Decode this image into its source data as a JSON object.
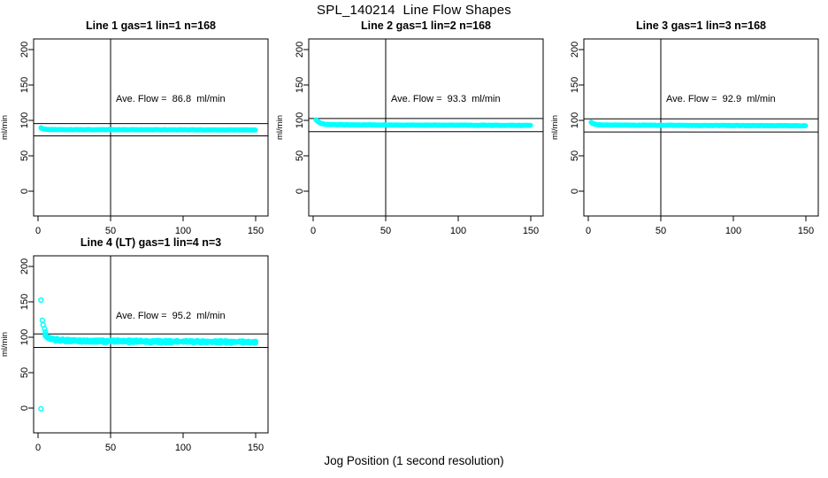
{
  "figure": {
    "title": "SPL_140214  Line Flow Shapes",
    "x_axis_label": "Jog Position (1 second resolution)",
    "background_color": "#ffffff",
    "point_color": "#00ffff",
    "axis_color": "#000000"
  },
  "chart_data": [
    {
      "type": "scatter",
      "title": "Line 1 gas=1 lin=1 n=168",
      "annotation": "Ave. Flow =  86.8  ml/min",
      "avg_flow_ml_min": 86.8,
      "n": 168,
      "ylabel": "ml/min",
      "xlim": [
        -3,
        158
      ],
      "ylim": [
        -35,
        215
      ],
      "x_ticks": [
        0,
        50,
        100,
        150
      ],
      "y_ticks": [
        0,
        50,
        100,
        150,
        200
      ],
      "vline_x": 50,
      "ref_lines_y": [
        95.5,
        78.1
      ],
      "band_profile": [
        [
          2,
          89.3
        ],
        [
          3,
          88.2
        ],
        [
          4,
          87.6
        ],
        [
          6,
          87.2
        ],
        [
          10,
          87.0
        ],
        [
          80,
          86.8
        ],
        [
          150,
          86.5
        ]
      ],
      "x_end": 150,
      "noise": 0.25,
      "wobble": 0,
      "runs": 1,
      "outliers": []
    },
    {
      "type": "scatter",
      "title": "Line 2 gas=1 lin=2 n=168",
      "annotation": "Ave. Flow =  93.3  ml/min",
      "avg_flow_ml_min": 93.3,
      "n": 168,
      "ylabel": "ml/min",
      "xlim": [
        -3,
        158
      ],
      "ylim": [
        -35,
        215
      ],
      "x_ticks": [
        0,
        50,
        100,
        150
      ],
      "y_ticks": [
        0,
        50,
        100,
        150,
        200
      ],
      "vline_x": 50,
      "ref_lines_y": [
        102.6,
        84.0
      ],
      "band_profile": [
        [
          2,
          100.8
        ],
        [
          3,
          99.0
        ],
        [
          4,
          97.2
        ],
        [
          5,
          96.0
        ],
        [
          7,
          94.8
        ],
        [
          10,
          94.2
        ],
        [
          20,
          93.8
        ],
        [
          60,
          93.4
        ],
        [
          150,
          92.9
        ]
      ],
      "x_end": 150,
      "noise": 0.3,
      "wobble": 0,
      "runs": 1,
      "outliers": []
    },
    {
      "type": "scatter",
      "title": "Line 3 gas=1 lin=3 n=168",
      "annotation": "Ave. Flow =  92.9  ml/min",
      "avg_flow_ml_min": 92.9,
      "n": 168,
      "ylabel": "ml/min",
      "xlim": [
        -3,
        158
      ],
      "ylim": [
        -35,
        215
      ],
      "x_ticks": [
        0,
        50,
        100,
        150
      ],
      "y_ticks": [
        0,
        50,
        100,
        150,
        200
      ],
      "vline_x": 50,
      "ref_lines_y": [
        102.2,
        83.6
      ],
      "band_profile": [
        [
          2,
          97.0
        ],
        [
          3,
          95.8
        ],
        [
          4,
          94.8
        ],
        [
          6,
          94.0
        ],
        [
          10,
          93.5
        ],
        [
          30,
          93.2
        ],
        [
          150,
          92.4
        ]
      ],
      "x_end": 150,
      "noise": 0.3,
      "wobble": 0,
      "runs": 1,
      "outliers": []
    },
    {
      "type": "scatter",
      "title": "Line 4 (LT) gas=1 lin=4 n=3",
      "annotation": "Ave. Flow =  95.2  ml/min",
      "avg_flow_ml_min": 95.2,
      "n": 3,
      "ylabel": "ml/min",
      "xlim": [
        -3,
        158
      ],
      "ylim": [
        -35,
        215
      ],
      "x_ticks": [
        0,
        50,
        100,
        150
      ],
      "y_ticks": [
        0,
        50,
        100,
        150,
        200
      ],
      "vline_x": 50,
      "ref_lines_y": [
        104.7,
        85.7
      ],
      "band_profile": [
        [
          5,
          103.0
        ],
        [
          6,
          100.5
        ],
        [
          8,
          98.5
        ],
        [
          12,
          96.5
        ],
        [
          20,
          95.3
        ],
        [
          40,
          94.6
        ],
        [
          80,
          94.0
        ],
        [
          150,
          93.2
        ]
      ],
      "x_end": 150,
      "noise": 1.1,
      "wobble": 1.0,
      "runs": 3,
      "outliers": [
        [
          2,
          152.5
        ],
        [
          2,
          -1
        ],
        [
          3,
          124
        ],
        [
          3.5,
          117.5
        ],
        [
          4.5,
          112
        ],
        [
          5,
          107.5
        ]
      ]
    }
  ]
}
